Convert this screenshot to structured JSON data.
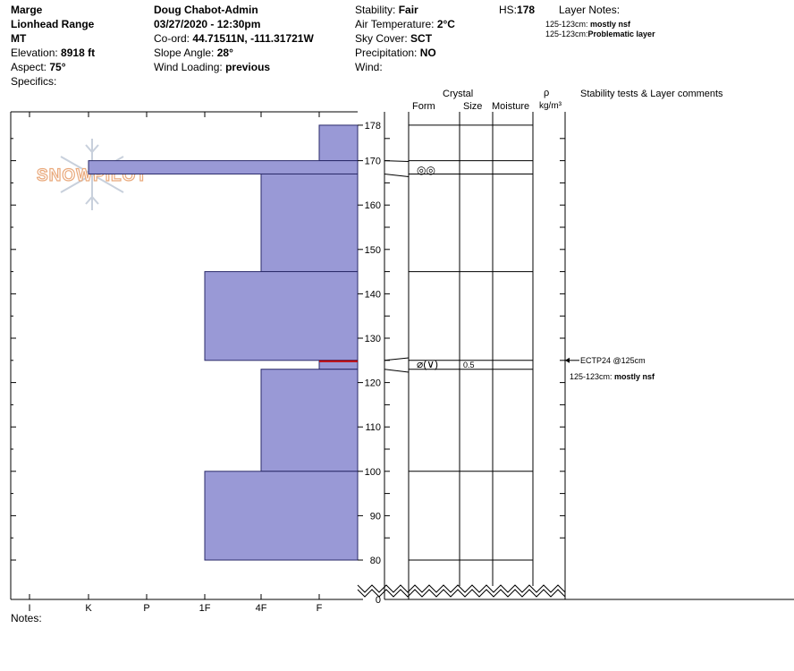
{
  "site": {
    "observer": "Marge",
    "range": "Lionhead Range",
    "state": "MT",
    "elevation_label": "Elevation:",
    "elevation_value": "8918 ft",
    "aspect_label": "Aspect:",
    "aspect_value": "75°",
    "specifics_label": "Specifics:"
  },
  "obs": {
    "name": "Doug Chabot-Admin",
    "datetime": "03/27/2020 - 12:30pm",
    "coord_label": "Co-ord:",
    "coord_value": "44.71511N, -111.31721W",
    "slope_label": "Slope Angle:",
    "slope_value": "28°",
    "wind_loading_label": "Wind Loading:",
    "wind_loading_value": "previous"
  },
  "conditions": {
    "stability_label": "Stability:",
    "stability_value": "Fair",
    "air_temp_label": "Air Temperature:",
    "air_temp_value": "2°C",
    "sky_label": "Sky Cover:",
    "sky_value": "SCT",
    "precip_label": "Precipitation:",
    "precip_value": "NO",
    "wind_label": "Wind:",
    "hs_label": "HS:",
    "hs_value": "178"
  },
  "layer_notes": {
    "title": "Layer Notes:",
    "items": [
      {
        "range": "125-123cm:",
        "text": "mostly nsf"
      },
      {
        "range": "125-123cm:",
        "text": "Problematic layer"
      }
    ]
  },
  "columns": {
    "crystal": "Crystal",
    "form": "Form",
    "size": "Size",
    "moisture": "Moisture",
    "rho": "ρ",
    "density_unit": "kg/m³",
    "comments": "Stability tests & Layer comments"
  },
  "watermark": "SNOWPILOT",
  "hardness_ticks": [
    "I",
    "K",
    "P",
    "1F",
    "4F",
    "F"
  ],
  "depth_ticks": [
    "178",
    "170",
    "160",
    "150",
    "140",
    "130",
    "120",
    "110",
    "100",
    "90",
    "80",
    "0"
  ],
  "layers": [
    {
      "top": 178,
      "bottom": 170,
      "hardness": "F"
    },
    {
      "top": 170,
      "bottom": 167,
      "hardness": "K"
    },
    {
      "top": 167,
      "bottom": 145,
      "hardness": "4F"
    },
    {
      "top": 145,
      "bottom": 125,
      "hardness": "1F"
    },
    {
      "top": 125,
      "bottom": 123,
      "hardness": "F"
    },
    {
      "top": 123,
      "bottom": 100,
      "hardness": "4F"
    },
    {
      "top": 100,
      "bottom": 80,
      "hardness": "1F"
    }
  ],
  "layer_lines_cm": [
    178,
    170,
    167,
    145,
    125,
    123,
    100,
    80
  ],
  "crystal_rows": [
    {
      "depth_cm": 168.5,
      "form": "◎◎",
      "size": ""
    },
    {
      "depth_cm": 124,
      "form": "⌀(∨)",
      "size": "0.5"
    }
  ],
  "stability_test": {
    "depth_cm": 125,
    "label": "ECTP24 @125cm"
  },
  "layer_comment": {
    "range": "125-123cm:",
    "text": "mostly nsf"
  },
  "notes_label": "Notes:",
  "colors": {
    "layer_fill": "#9999d6",
    "layer_stroke": "#2a2a6a",
    "problem_line": "#c00000"
  }
}
